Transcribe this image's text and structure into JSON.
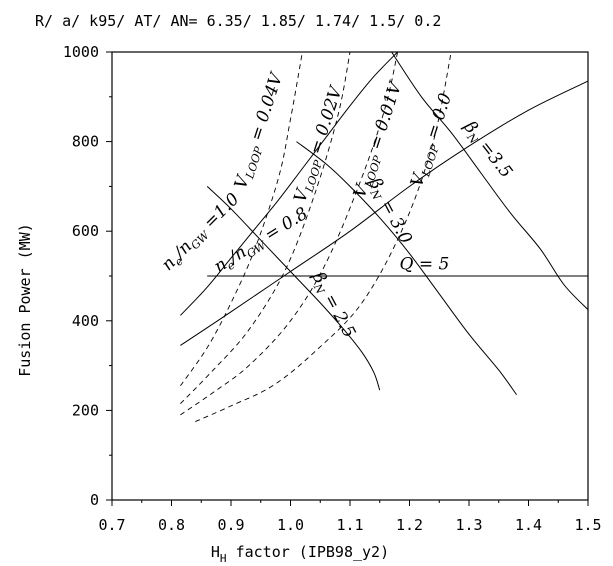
{
  "chart_data": {
    "type": "line",
    "title": "R/ a/ k95/ AT/ AN= 6.35/ 1.85/ 1.74/ 1.5/ 0.2",
    "xlabel": "H",
    "xlabel_sub": "H",
    "xlabel_rest": "  factor  (IPB98_y2)",
    "ylabel": "Fusion Power  (MW)",
    "xlim": [
      0.7,
      1.5
    ],
    "ylim": [
      0,
      1000
    ],
    "x_ticks": [
      "0.7",
      "0.8",
      "0.9",
      "1.0",
      "1.1",
      "1.2",
      "1.3",
      "1.4",
      "1.5"
    ],
    "y_ticks": [
      "0",
      "200",
      "400",
      "600",
      "800",
      "1000"
    ],
    "grid": false,
    "series": [
      {
        "name": "ne/nGW=1.0",
        "style": "solid",
        "x": [
          0.815,
          0.86,
          0.9,
          0.94,
          0.98,
          1.02,
          1.06,
          1.1,
          1.14,
          1.18
        ],
        "y": [
          412,
          475,
          540,
          605,
          670,
          740,
          810,
          880,
          945,
          1000
        ]
      },
      {
        "name": "ne/nGW=0.8",
        "style": "solid",
        "x": [
          0.815,
          0.9,
          1.0,
          1.1,
          1.2,
          1.3,
          1.4,
          1.5
        ],
        "y": [
          345,
          420,
          510,
          600,
          700,
          790,
          870,
          935
        ]
      },
      {
        "name": "betaN=2.5",
        "style": "solid",
        "x": [
          0.86,
          0.9,
          0.95,
          1.0,
          1.05,
          1.09,
          1.12,
          1.14,
          1.15
        ],
        "y": [
          700,
          650,
          580,
          510,
          440,
          380,
          330,
          285,
          245
        ]
      },
      {
        "name": "betaN=3.0",
        "style": "solid",
        "x": [
          1.01,
          1.06,
          1.1,
          1.15,
          1.2,
          1.25,
          1.3,
          1.35,
          1.38
        ],
        "y": [
          800,
          750,
          700,
          630,
          550,
          460,
          370,
          290,
          235
        ]
      },
      {
        "name": "betaN=3.5",
        "style": "solid",
        "x": [
          1.17,
          1.22,
          1.27,
          1.32,
          1.37,
          1.42,
          1.46,
          1.5
        ],
        "y": [
          1000,
          900,
          820,
          730,
          640,
          560,
          480,
          425
        ]
      },
      {
        "name": "Q=5",
        "style": "solid",
        "x": [
          0.86,
          1.5
        ],
        "y": [
          500,
          500
        ]
      },
      {
        "name": "VLOOP=0.04V",
        "style": "dashed",
        "x": [
          0.815,
          0.86,
          0.9,
          0.94,
          0.98,
          1.0,
          1.02
        ],
        "y": [
          255,
          340,
          440,
          560,
          720,
          850,
          1000
        ]
      },
      {
        "name": "VLOOP=0.02V",
        "style": "dashed",
        "x": [
          0.815,
          0.87,
          0.93,
          0.99,
          1.04,
          1.08,
          1.1
        ],
        "y": [
          215,
          290,
          380,
          510,
          680,
          860,
          1000
        ]
      },
      {
        "name": "VLOOP=0.01V",
        "style": "dashed",
        "x": [
          0.815,
          0.87,
          0.93,
          1.0,
          1.06,
          1.12,
          1.16,
          1.18
        ],
        "y": [
          190,
          240,
          300,
          400,
          530,
          720,
          880,
          1000
        ]
      },
      {
        "name": "VLOOP=0.0",
        "style": "dashed",
        "x": [
          0.84,
          0.9,
          0.97,
          1.04,
          1.12,
          1.19,
          1.24,
          1.27
        ],
        "y": [
          175,
          210,
          255,
          330,
          440,
          610,
          800,
          1000
        ]
      }
    ],
    "annotations": [
      {
        "id": "vloop-004",
        "base": "V",
        "sub": "LOOP",
        "rest": " = 0.04V",
        "x": 0.955,
        "y": 820,
        "angle": -72
      },
      {
        "id": "vloop-002",
        "base": "V",
        "sub": "LOOP",
        "rest": " = 0.02V",
        "x": 1.055,
        "y": 790,
        "angle": -72
      },
      {
        "id": "vloop-001",
        "base": "V",
        "sub": "LOOP",
        "rest": " = 0.01V",
        "x": 1.155,
        "y": 800,
        "angle": -72
      },
      {
        "id": "vloop-00",
        "base": "V",
        "sub": "LOOP",
        "rest": " = 0.0",
        "x": 1.245,
        "y": 800,
        "angle": -72
      },
      {
        "id": "ne-ngw-10",
        "base": "n",
        "sub": "e",
        "rest2": "/n",
        "sub2": "GW",
        "rest": " =1.0",
        "x": 0.855,
        "y": 590,
        "angle": -45
      },
      {
        "id": "ne-ngw-08",
        "base": "n",
        "sub": "e",
        "rest2": "/n",
        "sub2": "GW",
        "rest": " = 0.8",
        "x": 0.955,
        "y": 570,
        "angle": -32
      },
      {
        "id": "betan-25",
        "base": "β",
        "sub": "N",
        "rest": " = 2.5",
        "x": 1.065,
        "y": 430,
        "angle": 62
      },
      {
        "id": "betan-30",
        "base": "β",
        "sub": "N",
        "rest": " = 3.0",
        "x": 1.16,
        "y": 640,
        "angle": 62
      },
      {
        "id": "betan-35",
        "base": "β",
        "sub": "N",
        "rest": " =3.5",
        "x": 1.325,
        "y": 775,
        "angle": 52
      },
      {
        "id": "q-5",
        "base": "Q",
        "rest": " = 5",
        "x": 1.225,
        "y": 515,
        "angle": 0
      }
    ]
  }
}
